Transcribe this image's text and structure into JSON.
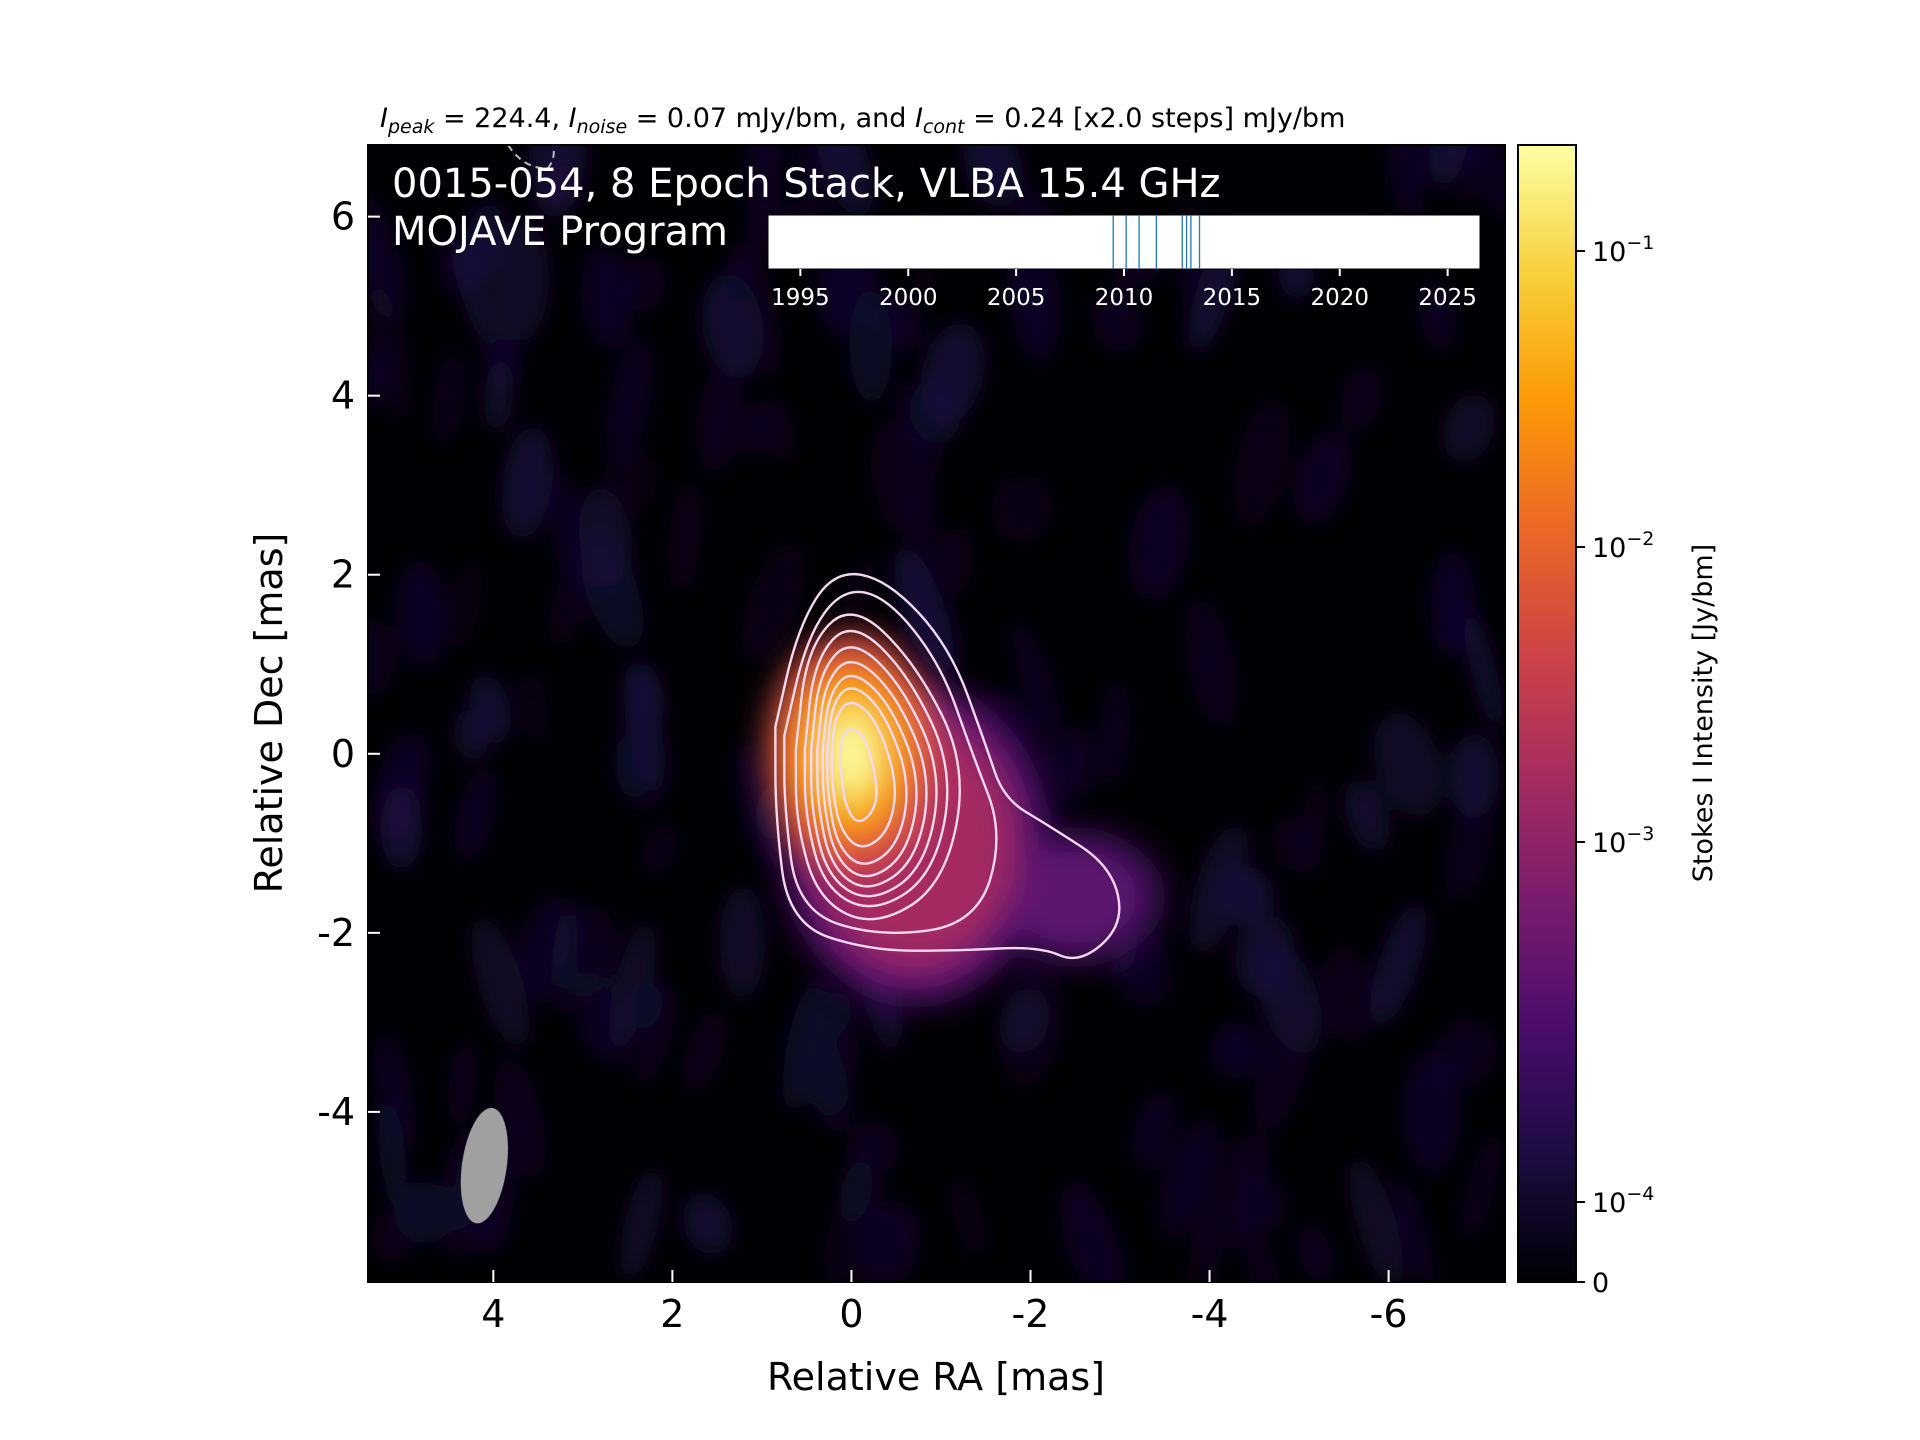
{
  "chart_data": {
    "type": "heatmap",
    "header": {
      "i_peak_symbol": "I",
      "i_peak_sub": "peak",
      "i_peak_text": " = 224.4, ",
      "i_noise_symbol": "I",
      "i_noise_sub": "noise",
      "i_noise_text": " = 0.07 mJy/bm, and ",
      "i_cont_symbol": "I",
      "i_cont_sub": "cont",
      "i_cont_text": " = 0.24 [x2.0 steps] mJy/bm"
    },
    "title_line1": "0015-054, 8 Epoch Stack, VLBA 15.4 GHz",
    "title_line2": "MOJAVE Program",
    "xlabel": "Relative RA [mas]",
    "ylabel": "Relative Dec [mas]",
    "xlim": [
      5.4,
      -7.3
    ],
    "ylim": [
      -5.9,
      6.8
    ],
    "xticks": [
      4,
      2,
      0,
      -2,
      -4,
      -6
    ],
    "yticks": [
      6,
      4,
      2,
      0,
      -2,
      -4
    ],
    "colorbar": {
      "label": "Stokes I Intensity [Jy/bm]",
      "scale": "log",
      "ticks": [
        {
          "value": 0.1,
          "base": "10",
          "exp": "−1"
        },
        {
          "value": 0.01,
          "base": "10",
          "exp": "−2"
        },
        {
          "value": 0.001,
          "base": "10",
          "exp": "−3"
        },
        {
          "value": 0.0001,
          "base": "10",
          "exp": "−4"
        },
        {
          "value": 0,
          "base": "0",
          "exp": ""
        }
      ],
      "colormap": "inferno",
      "colors": [
        "#000004",
        "#1b0c41",
        "#4a0c6b",
        "#781c6d",
        "#a52c60",
        "#cf4446",
        "#ed6925",
        "#fb9b06",
        "#f7d13d",
        "#fcffa4"
      ]
    },
    "beam": {
      "x": 4.1,
      "y": -4.6,
      "major": 1.3,
      "minor": 0.5,
      "pa_deg": 8
    },
    "contour_levels_mjy": [
      0.24,
      0.48,
      0.96,
      1.92,
      3.84,
      7.68,
      15.36,
      30.72,
      61.44,
      122.88
    ],
    "contour_color": "#f3d9ef",
    "components": [
      {
        "x": 0.0,
        "y": 0.0,
        "peak_jy": 0.2244
      },
      {
        "x": -0.7,
        "y": -1.0,
        "peak_jy": 0.012
      },
      {
        "x": -2.5,
        "y": -1.6,
        "peak_jy": 0.0012
      }
    ],
    "epoch_timeline": {
      "range": [
        1993.5,
        2026.5
      ],
      "ticks": [
        1995,
        2000,
        2005,
        2010,
        2015,
        2020,
        2025
      ],
      "epochs": [
        2009.5,
        2010.1,
        2010.7,
        2011.5,
        2012.9,
        2013.1,
        2013.5,
        2012.7
      ],
      "line_color": "#1f77b4"
    }
  }
}
